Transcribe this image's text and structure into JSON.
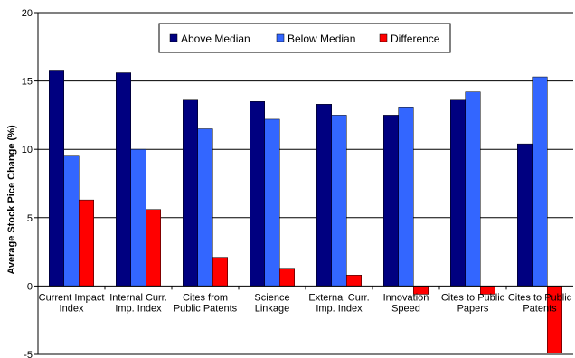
{
  "chart_data": {
    "type": "bar",
    "title": "",
    "xlabel": "",
    "ylabel": "Average Stock Pice Change (%)",
    "ylim": [
      -5,
      20
    ],
    "yticks": [
      -5,
      0,
      5,
      10,
      15,
      20
    ],
    "grid": true,
    "legend_position": "top",
    "categories": [
      [
        "Current Impact",
        "Index"
      ],
      [
        "Internal Curr.",
        "Imp. Index"
      ],
      [
        "Cites from",
        "Public Patents"
      ],
      [
        "Science",
        "Linkage"
      ],
      [
        "External Curr.",
        "Imp. Index"
      ],
      [
        "Innovation",
        "Speed"
      ],
      [
        "Cites to Public",
        "Papers"
      ],
      [
        "Cites to Public",
        "Patents"
      ]
    ],
    "series": [
      {
        "name": "Above Median",
        "color": "#000080",
        "values": [
          15.8,
          15.6,
          13.6,
          13.5,
          13.3,
          12.5,
          13.6,
          10.4
        ]
      },
      {
        "name": "Below Median",
        "color": "#3366FF",
        "values": [
          9.5,
          10.0,
          11.5,
          12.2,
          12.5,
          13.1,
          14.2,
          15.3
        ]
      },
      {
        "name": "Difference",
        "color": "#FF0000",
        "values": [
          6.3,
          5.6,
          2.1,
          1.3,
          0.8,
          -0.6,
          -0.6,
          -4.9
        ]
      }
    ]
  }
}
